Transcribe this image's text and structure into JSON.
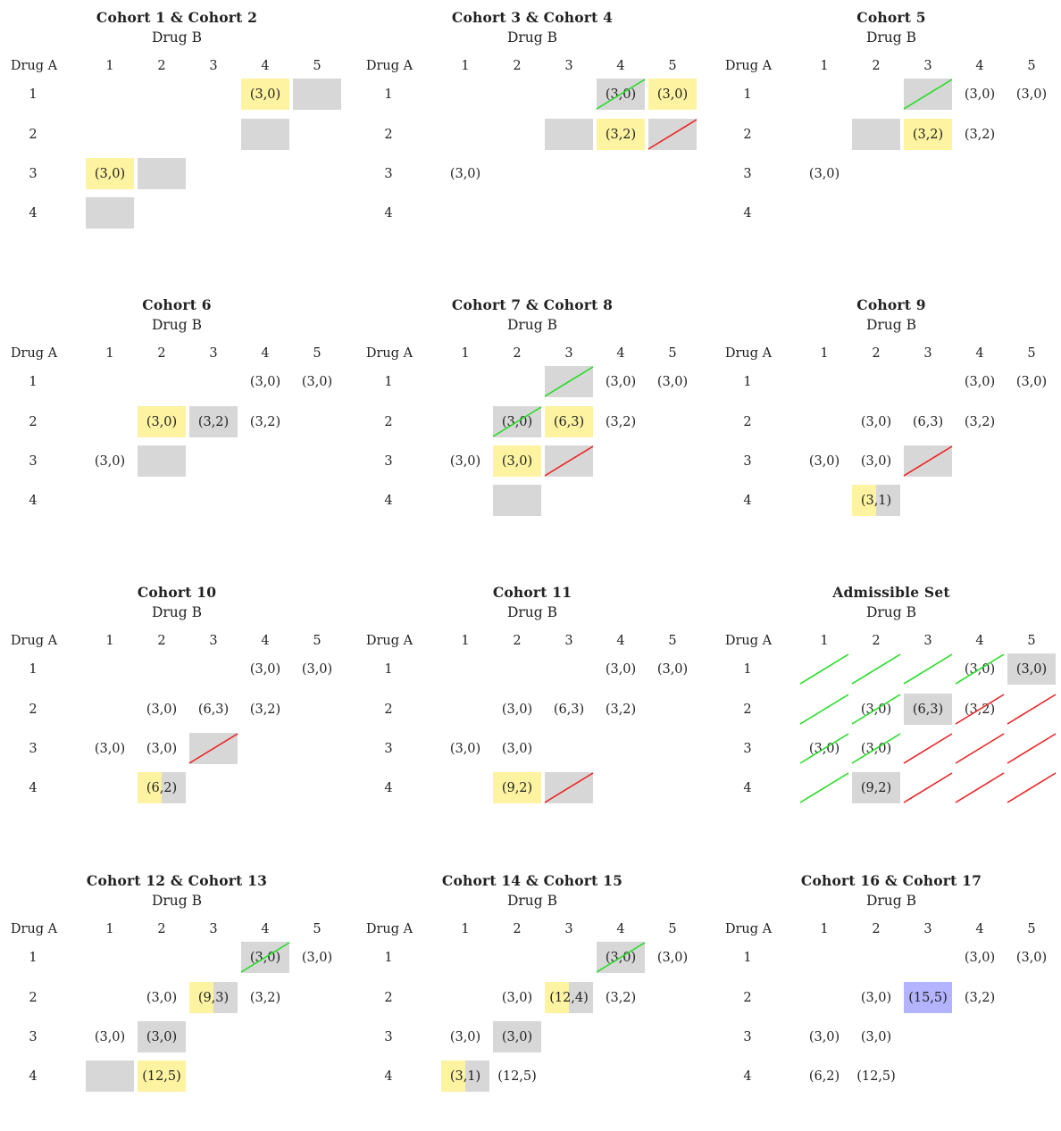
{
  "colors": {
    "gray": "#d7d7d7",
    "yellow": "#fdf3a0",
    "blue": "#b3b3ff",
    "green": "#22dd22",
    "red": "#ee2222"
  },
  "drug_b_label": "Drug B",
  "drug_a_label": "Drug A",
  "col_labels": [
    "1",
    "2",
    "3",
    "4",
    "5"
  ],
  "row_labels": [
    "1",
    "2",
    "3",
    "4"
  ],
  "panels": [
    {
      "title": "Cohort 1 & Cohort 2",
      "cells": [
        {
          "r": 1,
          "c": 4,
          "text": "(3,0)",
          "fill": "yellow"
        },
        {
          "r": 1,
          "c": 5,
          "text": "",
          "fill": "gray"
        },
        {
          "r": 2,
          "c": 4,
          "text": "",
          "fill": "gray"
        },
        {
          "r": 3,
          "c": 1,
          "text": "(3,0)",
          "fill": "yellow"
        },
        {
          "r": 3,
          "c": 2,
          "text": "",
          "fill": "gray"
        },
        {
          "r": 4,
          "c": 1,
          "text": "",
          "fill": "gray"
        }
      ]
    },
    {
      "title": "Cohort 3 & Cohort 4",
      "cells": [
        {
          "r": 1,
          "c": 4,
          "text": "(3,0)",
          "fill": "gray",
          "strike": "green"
        },
        {
          "r": 1,
          "c": 5,
          "text": "(3,0)",
          "fill": "yellow"
        },
        {
          "r": 2,
          "c": 3,
          "text": "",
          "fill": "gray"
        },
        {
          "r": 2,
          "c": 4,
          "text": "(3,2)",
          "fill": "yellow"
        },
        {
          "r": 2,
          "c": 5,
          "text": "",
          "fill": "gray",
          "strike": "red"
        },
        {
          "r": 3,
          "c": 1,
          "text": "(3,0)"
        }
      ]
    },
    {
      "title": "Cohort 5",
      "cells": [
        {
          "r": 1,
          "c": 3,
          "text": "",
          "fill": "gray",
          "strike": "green"
        },
        {
          "r": 1,
          "c": 4,
          "text": "(3,0)"
        },
        {
          "r": 1,
          "c": 5,
          "text": "(3,0)"
        },
        {
          "r": 2,
          "c": 2,
          "text": "",
          "fill": "gray"
        },
        {
          "r": 2,
          "c": 3,
          "text": "(3,2)",
          "fill": "yellow"
        },
        {
          "r": 2,
          "c": 4,
          "text": "(3,2)"
        },
        {
          "r": 3,
          "c": 1,
          "text": "(3,0)"
        }
      ]
    },
    {
      "title": "Cohort 6",
      "cells": [
        {
          "r": 1,
          "c": 4,
          "text": "(3,0)"
        },
        {
          "r": 1,
          "c": 5,
          "text": "(3,0)"
        },
        {
          "r": 2,
          "c": 2,
          "text": "(3,0)",
          "fill": "yellow"
        },
        {
          "r": 2,
          "c": 3,
          "text": "(3,2)",
          "fill": "gray"
        },
        {
          "r": 2,
          "c": 4,
          "text": "(3,2)"
        },
        {
          "r": 3,
          "c": 1,
          "text": "(3,0)"
        },
        {
          "r": 3,
          "c": 2,
          "text": "",
          "fill": "gray"
        }
      ]
    },
    {
      "title": "Cohort 7 & Cohort 8",
      "cells": [
        {
          "r": 1,
          "c": 3,
          "text": "",
          "fill": "gray",
          "strike": "green"
        },
        {
          "r": 1,
          "c": 4,
          "text": "(3,0)"
        },
        {
          "r": 1,
          "c": 5,
          "text": "(3,0)"
        },
        {
          "r": 2,
          "c": 2,
          "text": "(3,0)",
          "fill": "gray",
          "strike": "green"
        },
        {
          "r": 2,
          "c": 3,
          "text": "(6,3)",
          "fill": "yellow"
        },
        {
          "r": 2,
          "c": 4,
          "text": "(3,2)"
        },
        {
          "r": 3,
          "c": 1,
          "text": "(3,0)"
        },
        {
          "r": 3,
          "c": 2,
          "text": "(3,0)",
          "fill": "yellow"
        },
        {
          "r": 3,
          "c": 3,
          "text": "",
          "fill": "gray",
          "strike": "red"
        },
        {
          "r": 4,
          "c": 2,
          "text": "",
          "fill": "gray"
        }
      ]
    },
    {
      "title": "Cohort 9",
      "cells": [
        {
          "r": 1,
          "c": 4,
          "text": "(3,0)"
        },
        {
          "r": 1,
          "c": 5,
          "text": "(3,0)"
        },
        {
          "r": 2,
          "c": 2,
          "text": "(3,0)"
        },
        {
          "r": 2,
          "c": 3,
          "text": "(6,3)"
        },
        {
          "r": 2,
          "c": 4,
          "text": "(3,2)"
        },
        {
          "r": 3,
          "c": 1,
          "text": "(3,0)"
        },
        {
          "r": 3,
          "c": 2,
          "text": "(3,0)"
        },
        {
          "r": 3,
          "c": 3,
          "text": "",
          "fill": "gray",
          "strike": "red"
        },
        {
          "r": 4,
          "c": 2,
          "text": "(3,1)",
          "fill": "split"
        }
      ]
    },
    {
      "title": "Cohort 10",
      "cells": [
        {
          "r": 1,
          "c": 4,
          "text": "(3,0)"
        },
        {
          "r": 1,
          "c": 5,
          "text": "(3,0)"
        },
        {
          "r": 2,
          "c": 2,
          "text": "(3,0)"
        },
        {
          "r": 2,
          "c": 3,
          "text": "(6,3)"
        },
        {
          "r": 2,
          "c": 4,
          "text": "(3,2)"
        },
        {
          "r": 3,
          "c": 1,
          "text": "(3,0)"
        },
        {
          "r": 3,
          "c": 2,
          "text": "(3,0)"
        },
        {
          "r": 3,
          "c": 3,
          "text": "",
          "fill": "gray",
          "strike": "red"
        },
        {
          "r": 4,
          "c": 2,
          "text": "(6,2)",
          "fill": "split"
        }
      ]
    },
    {
      "title": "Cohort 11",
      "cells": [
        {
          "r": 1,
          "c": 4,
          "text": "(3,0)"
        },
        {
          "r": 1,
          "c": 5,
          "text": "(3,0)"
        },
        {
          "r": 2,
          "c": 2,
          "text": "(3,0)"
        },
        {
          "r": 2,
          "c": 3,
          "text": "(6,3)"
        },
        {
          "r": 2,
          "c": 4,
          "text": "(3,2)"
        },
        {
          "r": 3,
          "c": 1,
          "text": "(3,0)"
        },
        {
          "r": 3,
          "c": 2,
          "text": "(3,0)"
        },
        {
          "r": 4,
          "c": 2,
          "text": "(9,2)",
          "fill": "yellow"
        },
        {
          "r": 4,
          "c": 3,
          "text": "",
          "fill": "gray",
          "strike": "red"
        }
      ]
    },
    {
      "title": "Admissible Set",
      "cells": [
        {
          "r": 1,
          "c": 1,
          "text": "",
          "strike": "green"
        },
        {
          "r": 1,
          "c": 2,
          "text": "",
          "strike": "green"
        },
        {
          "r": 1,
          "c": 3,
          "text": "",
          "strike": "green"
        },
        {
          "r": 1,
          "c": 4,
          "text": "(3,0)",
          "strike": "green"
        },
        {
          "r": 1,
          "c": 5,
          "text": "(3,0)",
          "fill": "gray"
        },
        {
          "r": 2,
          "c": 1,
          "text": "",
          "strike": "green"
        },
        {
          "r": 2,
          "c": 2,
          "text": "(3,0)",
          "strike": "green"
        },
        {
          "r": 2,
          "c": 3,
          "text": "(6,3)",
          "fill": "gray"
        },
        {
          "r": 2,
          "c": 4,
          "text": "(3,2)",
          "strike": "red"
        },
        {
          "r": 2,
          "c": 5,
          "text": "",
          "strike": "red"
        },
        {
          "r": 3,
          "c": 1,
          "text": "(3,0)",
          "strike": "green"
        },
        {
          "r": 3,
          "c": 2,
          "text": "(3,0)",
          "strike": "green"
        },
        {
          "r": 3,
          "c": 3,
          "text": "",
          "strike": "red"
        },
        {
          "r": 3,
          "c": 4,
          "text": "",
          "strike": "red"
        },
        {
          "r": 3,
          "c": 5,
          "text": "",
          "strike": "red"
        },
        {
          "r": 4,
          "c": 1,
          "text": "",
          "strike": "green"
        },
        {
          "r": 4,
          "c": 2,
          "text": "(9,2)",
          "fill": "gray"
        },
        {
          "r": 4,
          "c": 3,
          "text": "",
          "strike": "red"
        },
        {
          "r": 4,
          "c": 4,
          "text": "",
          "strike": "red"
        },
        {
          "r": 4,
          "c": 5,
          "text": "",
          "strike": "red"
        }
      ]
    },
    {
      "title": "Cohort 12 & Cohort 13",
      "cells": [
        {
          "r": 1,
          "c": 4,
          "text": "(3,0)",
          "fill": "gray",
          "strike": "green"
        },
        {
          "r": 1,
          "c": 5,
          "text": "(3,0)"
        },
        {
          "r": 2,
          "c": 2,
          "text": "(3,0)"
        },
        {
          "r": 2,
          "c": 3,
          "text": "(9,3)",
          "fill": "split"
        },
        {
          "r": 2,
          "c": 4,
          "text": "(3,2)"
        },
        {
          "r": 3,
          "c": 1,
          "text": "(3,0)"
        },
        {
          "r": 3,
          "c": 2,
          "text": "(3,0)",
          "fill": "gray"
        },
        {
          "r": 4,
          "c": 1,
          "text": "",
          "fill": "gray"
        },
        {
          "r": 4,
          "c": 2,
          "text": "(12,5)",
          "fill": "yellow"
        }
      ]
    },
    {
      "title": "Cohort 14 & Cohort 15",
      "cells": [
        {
          "r": 1,
          "c": 4,
          "text": "(3,0)",
          "fill": "gray",
          "strike": "green"
        },
        {
          "r": 1,
          "c": 5,
          "text": "(3,0)"
        },
        {
          "r": 2,
          "c": 2,
          "text": "(3,0)"
        },
        {
          "r": 2,
          "c": 3,
          "text": "(12,4)",
          "fill": "split"
        },
        {
          "r": 2,
          "c": 4,
          "text": "(3,2)"
        },
        {
          "r": 3,
          "c": 1,
          "text": "(3,0)"
        },
        {
          "r": 3,
          "c": 2,
          "text": "(3,0)",
          "fill": "gray"
        },
        {
          "r": 4,
          "c": 1,
          "text": "(3,1)",
          "fill": "split"
        },
        {
          "r": 4,
          "c": 2,
          "text": "(12,5)"
        }
      ]
    },
    {
      "title": "Cohort 16 & Cohort 17",
      "cells": [
        {
          "r": 1,
          "c": 4,
          "text": "(3,0)"
        },
        {
          "r": 1,
          "c": 5,
          "text": "(3,0)"
        },
        {
          "r": 2,
          "c": 2,
          "text": "(3,0)"
        },
        {
          "r": 2,
          "c": 3,
          "text": "(15,5)",
          "fill": "blue"
        },
        {
          "r": 2,
          "c": 4,
          "text": "(3,2)"
        },
        {
          "r": 3,
          "c": 1,
          "text": "(3,0)"
        },
        {
          "r": 3,
          "c": 2,
          "text": "(3,0)"
        },
        {
          "r": 4,
          "c": 1,
          "text": "(6,2)"
        },
        {
          "r": 4,
          "c": 2,
          "text": "(12,5)"
        }
      ]
    }
  ]
}
